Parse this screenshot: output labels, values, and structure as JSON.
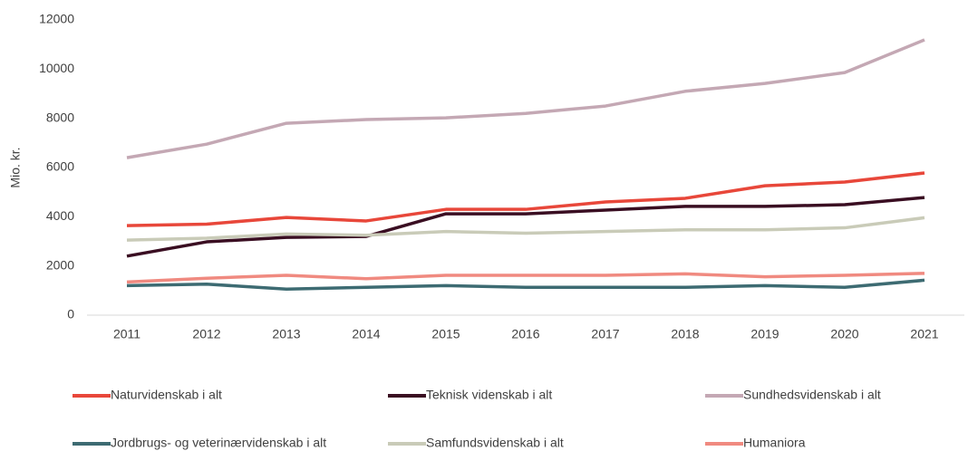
{
  "chart_data": {
    "type": "line",
    "y_label": "Mio. kr.",
    "categories": [
      "2011",
      "2012",
      "2013",
      "2014",
      "2015",
      "2016",
      "2017",
      "2018",
      "2019",
      "2020",
      "2021"
    ],
    "ylim": [
      0,
      12000
    ],
    "yticks": [
      0,
      2000,
      4000,
      6000,
      8000,
      10000,
      12000
    ],
    "series": [
      {
        "name": "Naturvidenskab i alt",
        "color": "#e8473a",
        "values": [
          3640,
          3700,
          3970,
          3830,
          4300,
          4300,
          4600,
          4750,
          5260,
          5410,
          5780
        ]
      },
      {
        "name": "Teknisk videnskab i alt",
        "color": "#3a0e22",
        "values": [
          2400,
          2980,
          3160,
          3200,
          4120,
          4120,
          4270,
          4420,
          4420,
          4490,
          4780
        ]
      },
      {
        "name": "Sundhedsvidenskab i alt",
        "color": "#c4a8b4",
        "values": [
          6400,
          6950,
          7800,
          7950,
          8020,
          8200,
          8500,
          9100,
          9420,
          9860,
          11190
        ]
      },
      {
        "name": "Jordbrugs- og veterinærvidenskab i alt",
        "color": "#3d6b72",
        "values": [
          1200,
          1260,
          1060,
          1130,
          1200,
          1130,
          1130,
          1130,
          1200,
          1130,
          1420
        ]
      },
      {
        "name": "Samfundsvidenskab i alt",
        "color": "#c9cbb8",
        "values": [
          3050,
          3130,
          3300,
          3250,
          3400,
          3330,
          3400,
          3470,
          3470,
          3550,
          3960
        ]
      },
      {
        "name": "Humaniora",
        "color": "#f08a80",
        "values": [
          1350,
          1500,
          1620,
          1480,
          1620,
          1620,
          1620,
          1680,
          1560,
          1620,
          1700
        ]
      }
    ]
  }
}
